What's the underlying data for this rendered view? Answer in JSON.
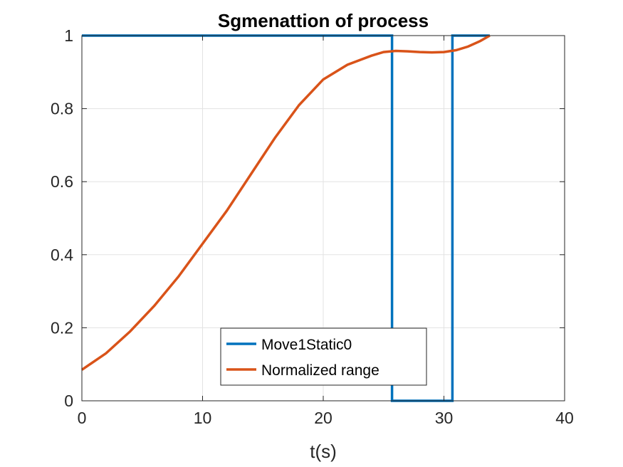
{
  "chart_data": {
    "type": "line",
    "title": "Sgmenattion of process",
    "xlabel": "t(s)",
    "ylabel": "",
    "xlim": [
      0,
      40
    ],
    "ylim": [
      0,
      1
    ],
    "xticks": [
      0,
      10,
      20,
      30,
      40
    ],
    "xtick_labels": [
      "0",
      "10",
      "20",
      "30",
      "40"
    ],
    "yticks": [
      0,
      0.2,
      0.4,
      0.6,
      0.8,
      1
    ],
    "ytick_labels": [
      "0",
      "0.2",
      "0.4",
      "0.6",
      "0.8",
      "1"
    ],
    "grid": true,
    "legend_position": "bottom-center",
    "series": [
      {
        "name": "Move1Static0",
        "color": "#0072bd",
        "x": [
          0,
          25.7,
          25.7,
          30.7,
          30.7,
          33.8
        ],
        "y": [
          1,
          1,
          0,
          0,
          1,
          1
        ]
      },
      {
        "name": "Normalized range",
        "color": "#d95319",
        "x": [
          0,
          2,
          4,
          6,
          8,
          10,
          12,
          14,
          16,
          18,
          20,
          22,
          24,
          25,
          26,
          27,
          28,
          29,
          30,
          31,
          32,
          33,
          33.8
        ],
        "y": [
          0.085,
          0.13,
          0.19,
          0.26,
          0.34,
          0.43,
          0.52,
          0.62,
          0.72,
          0.81,
          0.88,
          0.92,
          0.945,
          0.955,
          0.958,
          0.957,
          0.955,
          0.954,
          0.955,
          0.96,
          0.97,
          0.985,
          1.0
        ]
      }
    ]
  }
}
